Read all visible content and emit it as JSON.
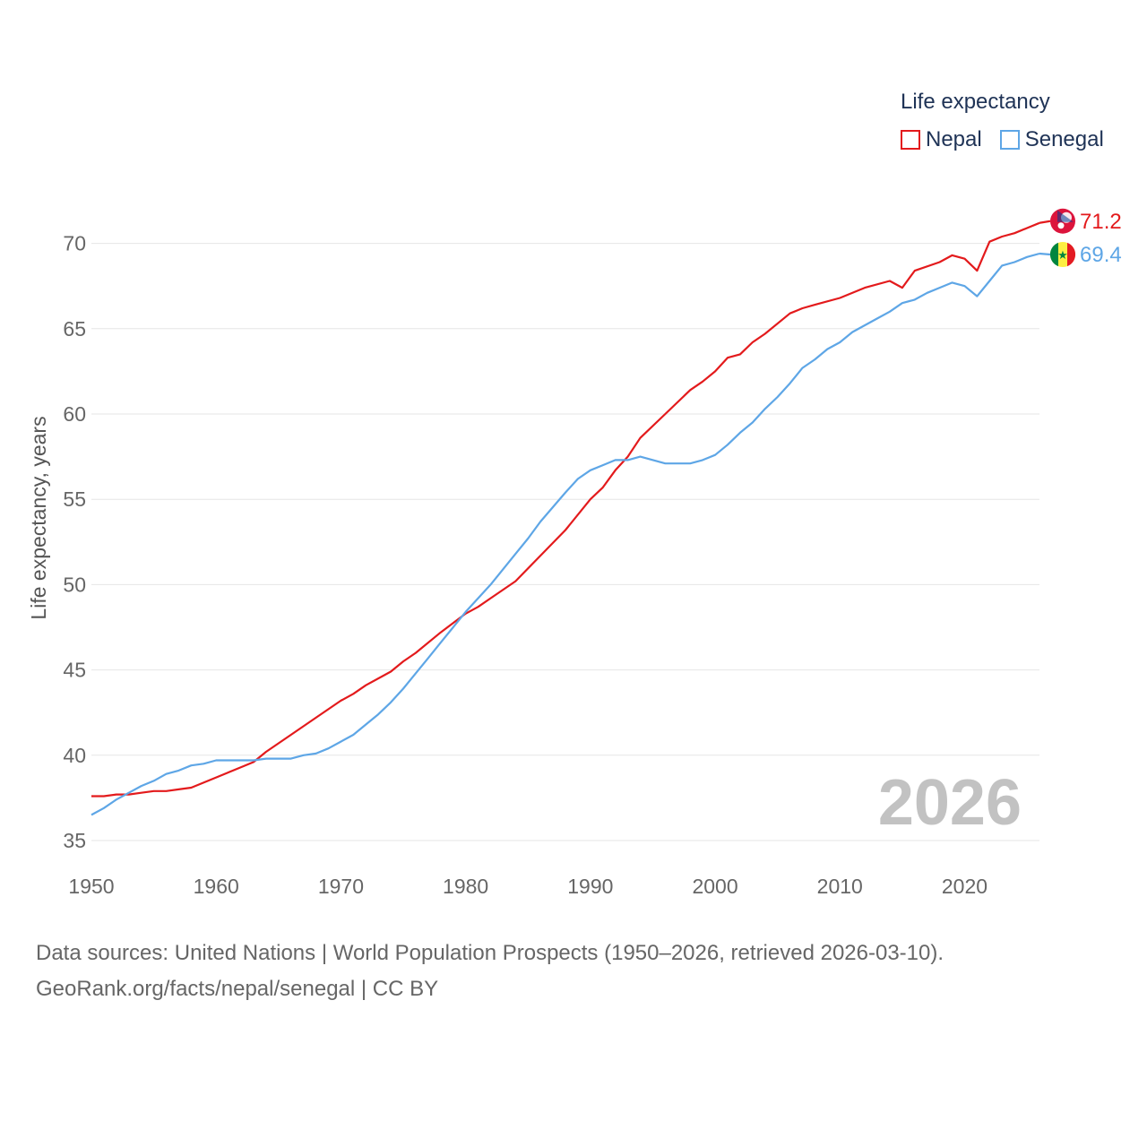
{
  "legend": {
    "title": "Life expectancy",
    "items": [
      {
        "label": "Nepal",
        "color": "#e31a1c"
      },
      {
        "label": "Senegal",
        "color": "#5ea6e6"
      }
    ]
  },
  "footer": {
    "line1": "Data sources: United Nations | World Population Prospects (1950–2026, retrieved 2026-03-10).",
    "line2": "GeoRank.org/facts/nepal/senegal | CC BY"
  },
  "chart_data": {
    "type": "line",
    "title": "Life expectancy",
    "xlabel": "",
    "ylabel": "Life expectancy, years",
    "xlim": [
      1950,
      2026
    ],
    "ylim": [
      35,
      72
    ],
    "grid": true,
    "x_ticks": [
      1950,
      1960,
      1970,
      1980,
      1990,
      2000,
      2010,
      2020
    ],
    "y_ticks": [
      35,
      40,
      45,
      50,
      55,
      60,
      65,
      70
    ],
    "year_watermark": "2026",
    "series": [
      {
        "name": "Nepal",
        "color": "#e31a1c",
        "end_label": "71.2",
        "flag": "nepal",
        "points": [
          [
            1950,
            37.6
          ],
          [
            1951,
            37.6
          ],
          [
            1952,
            37.7
          ],
          [
            1953,
            37.7
          ],
          [
            1954,
            37.8
          ],
          [
            1955,
            37.9
          ],
          [
            1956,
            37.9
          ],
          [
            1957,
            38.0
          ],
          [
            1958,
            38.1
          ],
          [
            1960,
            38.7
          ],
          [
            1962,
            39.3
          ],
          [
            1963,
            39.6
          ],
          [
            1964,
            40.2
          ],
          [
            1966,
            41.2
          ],
          [
            1968,
            42.2
          ],
          [
            1970,
            43.2
          ],
          [
            1971,
            43.6
          ],
          [
            1972,
            44.1
          ],
          [
            1974,
            44.9
          ],
          [
            1975,
            45.5
          ],
          [
            1976,
            46.0
          ],
          [
            1978,
            47.2
          ],
          [
            1980,
            48.3
          ],
          [
            1981,
            48.7
          ],
          [
            1982,
            49.2
          ],
          [
            1984,
            50.2
          ],
          [
            1986,
            51.7
          ],
          [
            1988,
            53.2
          ],
          [
            1990,
            55.0
          ],
          [
            1991,
            55.7
          ],
          [
            1992,
            56.7
          ],
          [
            1993,
            57.5
          ],
          [
            1994,
            58.6
          ],
          [
            1996,
            60.0
          ],
          [
            1998,
            61.4
          ],
          [
            1999,
            61.9
          ],
          [
            2000,
            62.5
          ],
          [
            2001,
            63.3
          ],
          [
            2002,
            63.5
          ],
          [
            2003,
            64.2
          ],
          [
            2004,
            64.7
          ],
          [
            2006,
            65.9
          ],
          [
            2007,
            66.2
          ],
          [
            2008,
            66.4
          ],
          [
            2010,
            66.8
          ],
          [
            2012,
            67.4
          ],
          [
            2014,
            67.8
          ],
          [
            2015,
            67.4
          ],
          [
            2016,
            68.4
          ],
          [
            2018,
            68.9
          ],
          [
            2019,
            69.3
          ],
          [
            2020,
            69.1
          ],
          [
            2021,
            68.4
          ],
          [
            2022,
            70.1
          ],
          [
            2023,
            70.4
          ],
          [
            2024,
            70.6
          ],
          [
            2025,
            70.9
          ],
          [
            2026,
            71.2
          ]
        ]
      },
      {
        "name": "Senegal",
        "color": "#5ea6e6",
        "end_label": "69.4",
        "flag": "senegal",
        "points": [
          [
            1950,
            36.5
          ],
          [
            1951,
            36.9
          ],
          [
            1952,
            37.4
          ],
          [
            1953,
            37.8
          ],
          [
            1954,
            38.2
          ],
          [
            1955,
            38.5
          ],
          [
            1956,
            38.9
          ],
          [
            1957,
            39.1
          ],
          [
            1958,
            39.4
          ],
          [
            1959,
            39.5
          ],
          [
            1960,
            39.7
          ],
          [
            1962,
            39.7
          ],
          [
            1963,
            39.7
          ],
          [
            1964,
            39.8
          ],
          [
            1966,
            39.8
          ],
          [
            1967,
            40.0
          ],
          [
            1968,
            40.1
          ],
          [
            1969,
            40.4
          ],
          [
            1970,
            40.8
          ],
          [
            1971,
            41.2
          ],
          [
            1972,
            41.8
          ],
          [
            1973,
            42.4
          ],
          [
            1974,
            43.1
          ],
          [
            1975,
            43.9
          ],
          [
            1976,
            44.8
          ],
          [
            1977,
            45.7
          ],
          [
            1978,
            46.6
          ],
          [
            1979,
            47.5
          ],
          [
            1980,
            48.4
          ],
          [
            1982,
            50.0
          ],
          [
            1984,
            51.8
          ],
          [
            1985,
            52.7
          ],
          [
            1986,
            53.7
          ],
          [
            1988,
            55.4
          ],
          [
            1989,
            56.2
          ],
          [
            1990,
            56.7
          ],
          [
            1991,
            57.0
          ],
          [
            1992,
            57.3
          ],
          [
            1993,
            57.3
          ],
          [
            1994,
            57.5
          ],
          [
            1996,
            57.1
          ],
          [
            1998,
            57.1
          ],
          [
            1999,
            57.3
          ],
          [
            2000,
            57.6
          ],
          [
            2001,
            58.2
          ],
          [
            2002,
            58.9
          ],
          [
            2003,
            59.5
          ],
          [
            2004,
            60.3
          ],
          [
            2005,
            61.0
          ],
          [
            2006,
            61.8
          ],
          [
            2007,
            62.7
          ],
          [
            2008,
            63.2
          ],
          [
            2009,
            63.8
          ],
          [
            2010,
            64.2
          ],
          [
            2011,
            64.8
          ],
          [
            2012,
            65.2
          ],
          [
            2013,
            65.6
          ],
          [
            2014,
            66.0
          ],
          [
            2015,
            66.5
          ],
          [
            2016,
            66.7
          ],
          [
            2017,
            67.1
          ],
          [
            2018,
            67.4
          ],
          [
            2019,
            67.7
          ],
          [
            2020,
            67.5
          ],
          [
            2021,
            66.9
          ],
          [
            2022,
            67.8
          ],
          [
            2023,
            68.7
          ],
          [
            2024,
            68.9
          ],
          [
            2025,
            69.2
          ],
          [
            2026,
            69.4
          ]
        ]
      }
    ]
  }
}
